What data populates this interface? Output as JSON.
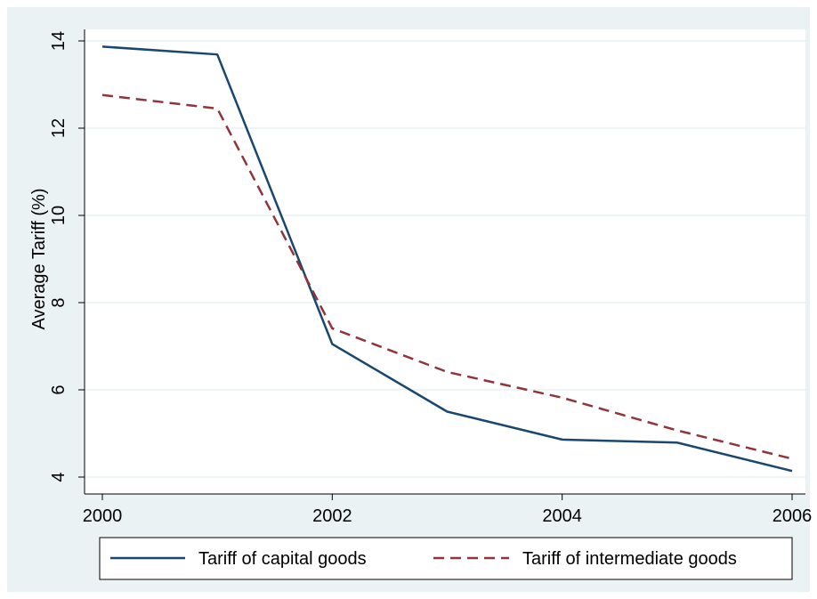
{
  "chart_data": {
    "type": "line",
    "title": "",
    "xlabel": "",
    "ylabel": "Average Tariff (%)",
    "xlim": [
      2000,
      2006
    ],
    "ylim": [
      4,
      14
    ],
    "xticks": [
      2000,
      2002,
      2004,
      2006
    ],
    "yticks": [
      4,
      6,
      8,
      10,
      12,
      14
    ],
    "grid": true,
    "legend_position": "bottom",
    "x": [
      2000,
      2001,
      2002,
      2003,
      2004,
      2005,
      2006
    ],
    "series": [
      {
        "name": "Tariff of capital goods",
        "values": [
          13.87,
          13.69,
          7.05,
          5.5,
          4.86,
          4.79,
          4.14
        ],
        "color": "#1a476f",
        "dash": "solid"
      },
      {
        "name": "Tariff of intermediate goods",
        "values": [
          12.76,
          12.45,
          7.41,
          6.41,
          5.82,
          5.07,
          4.42
        ],
        "color": "#90353b",
        "dash": "dashed"
      }
    ]
  },
  "colors": {
    "outer_background": "#eaf2f3",
    "plot_background": "#ffffff",
    "grid": "#eaf2f3"
  }
}
